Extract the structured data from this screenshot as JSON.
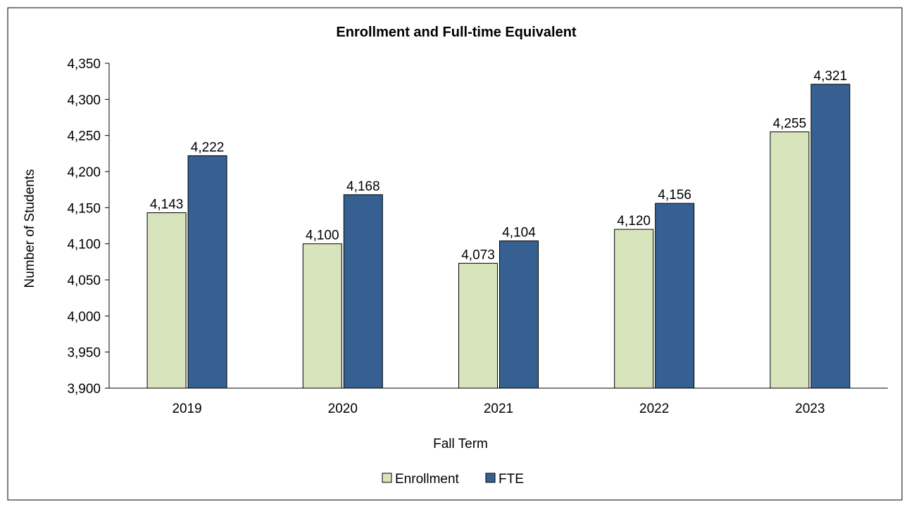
{
  "chart_data": {
    "type": "bar",
    "title": "Enrollment and Full-time Equivalent",
    "xlabel": "Fall Term",
    "ylabel": "Number of Students",
    "categories": [
      "2019",
      "2020",
      "2021",
      "2022",
      "2023"
    ],
    "series": [
      {
        "name": "Enrollment",
        "values": [
          4143,
          4100,
          4073,
          4120,
          4255
        ],
        "color": "#d7e4bc",
        "labels": [
          "4,143",
          "4,100",
          "4,073",
          "4,120",
          "4,255"
        ]
      },
      {
        "name": "FTE",
        "values": [
          4222,
          4168,
          4104,
          4156,
          4321
        ],
        "color": "#376092",
        "labels": [
          "4,222",
          "4,168",
          "4,104",
          "4,156",
          "4,321"
        ]
      }
    ],
    "ylim": [
      3900,
      4350
    ],
    "yticks": [
      3900,
      3950,
      4000,
      4050,
      4100,
      4150,
      4200,
      4250,
      4300,
      4350
    ],
    "ytick_labels": [
      "3,900",
      "3,950",
      "4,000",
      "4,050",
      "4,100",
      "4,150",
      "4,200",
      "4,250",
      "4,300",
      "4,350"
    ],
    "grid": false,
    "legend": "bottom-center"
  }
}
